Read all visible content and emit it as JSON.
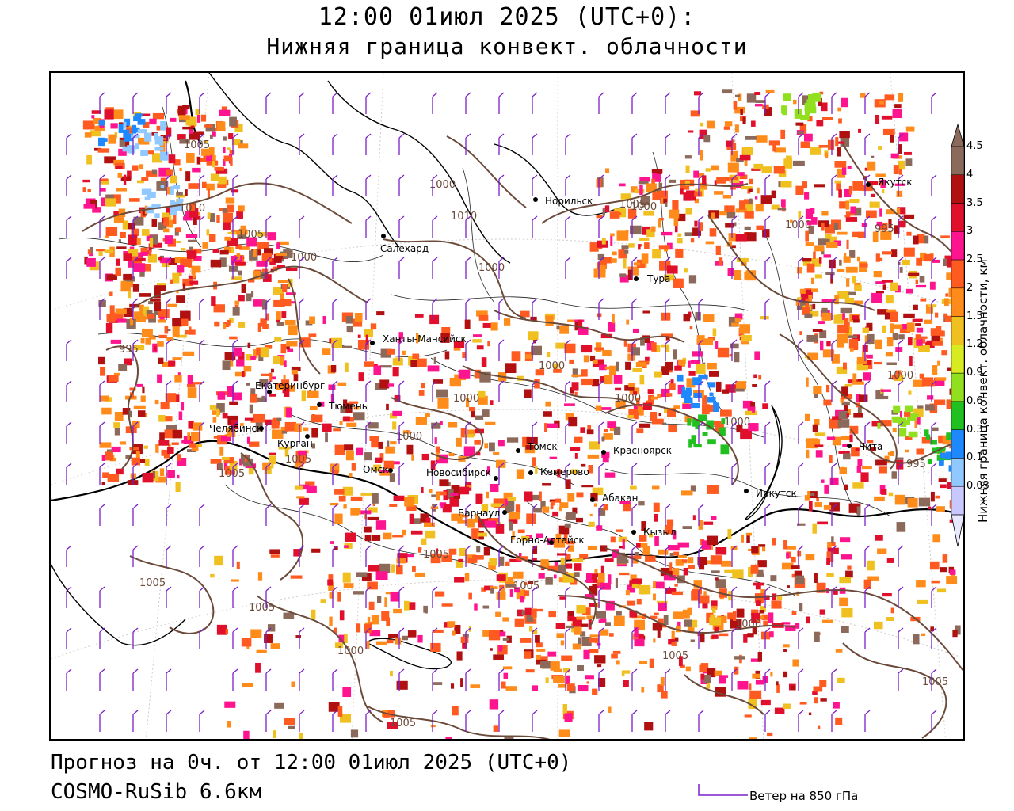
{
  "header": {
    "title_line1": "12:00 01июл 2025 (UTC+0):",
    "title_line2": "Нижняя граница конвект. облачности"
  },
  "footer": {
    "forecast_line": "Прогноз на 0ч. от 12:00 01июл 2025 (UTC+0)",
    "model_line": "COSMO-RuSib 6.6км",
    "wind_legend": "Ветер на 850 гПа"
  },
  "colorbar": {
    "title": "Нижняя граница конвект. облачности, км",
    "ticks": [
      "4.5",
      "4",
      "3.5",
      "3",
      "2.5",
      "2",
      "1.5",
      "1.2",
      "0.9",
      "0.6",
      "0.3",
      "0.1",
      "0.03"
    ],
    "colors": [
      "#8b6a5c",
      "#b01010",
      "#e0102c",
      "#ff1490",
      "#ff5a20",
      "#ff8c1a",
      "#f0c020",
      "#d8ea20",
      "#90e020",
      "#20c020",
      "#1e88ff",
      "#90c8ff",
      "#c8c8ff"
    ]
  },
  "cities": [
    {
      "name": "Якутск"
    },
    {
      "name": "Норильск"
    },
    {
      "name": "Салехард"
    },
    {
      "name": "Тура"
    },
    {
      "name": "Ханты-Мансийск"
    },
    {
      "name": "Екатеринбург"
    },
    {
      "name": "Тюмень"
    },
    {
      "name": "Челябинск"
    },
    {
      "name": "Курган"
    },
    {
      "name": "Омск"
    },
    {
      "name": "Новосибирск"
    },
    {
      "name": "Томск"
    },
    {
      "name": "Кемерово"
    },
    {
      "name": "Красноярск"
    },
    {
      "name": "Барнаул"
    },
    {
      "name": "Абакан"
    },
    {
      "name": "Иркутск"
    },
    {
      "name": "Чита"
    },
    {
      "name": "Кызыл"
    },
    {
      "name": "Горно-Алтайск"
    }
  ],
  "isobar_labels": [
    "1005",
    "1000",
    "1010",
    "1010",
    "1005",
    "1000",
    "995",
    "1000",
    "1005",
    "1000",
    "995",
    "1000",
    "1000",
    "1000",
    "1000",
    "1000",
    "1000",
    "1000",
    "1005",
    "995",
    "1005",
    "1005",
    "1005",
    "1000",
    "1000",
    "1005",
    "1005",
    "1005",
    "1005",
    "1005"
  ]
}
